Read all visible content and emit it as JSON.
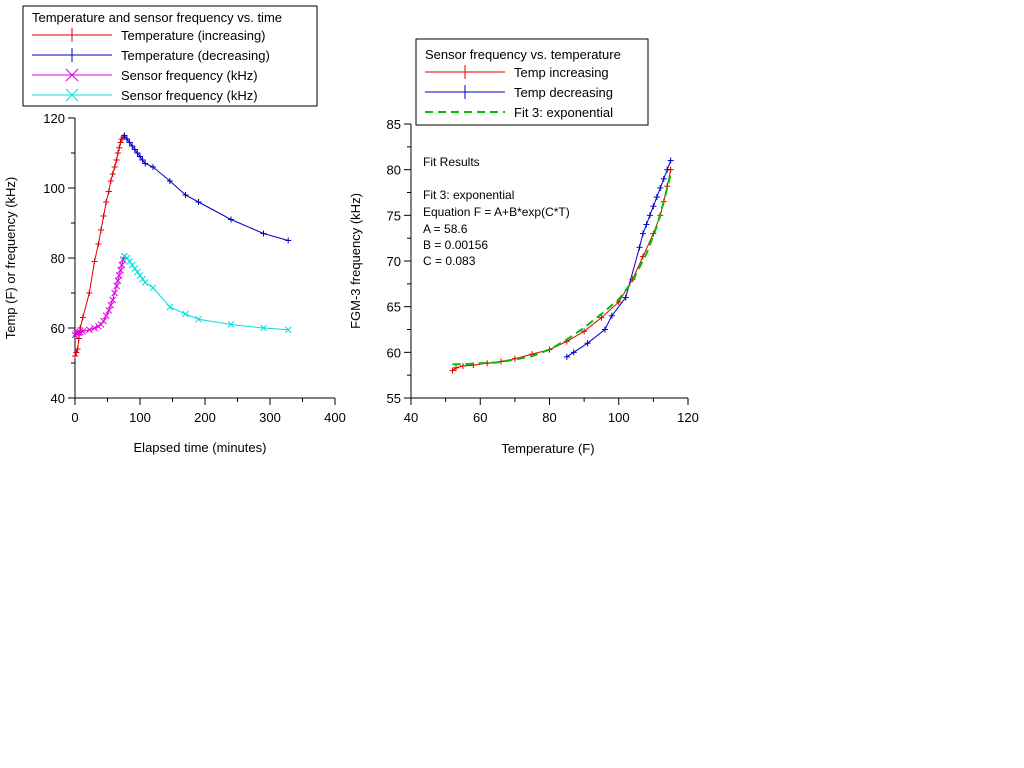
{
  "chart_data": [
    {
      "type": "line",
      "legend_title": "Temperature and sensor frequency vs. time",
      "xlabel": "Elapsed time (minutes)",
      "ylabel": "Temp (F) or frequency (kHz)",
      "xlim": [
        0,
        400
      ],
      "ylim": [
        40,
        120
      ],
      "xticks": [
        0,
        100,
        200,
        300,
        400
      ],
      "yticks": [
        40,
        60,
        80,
        100,
        120
      ],
      "grid": false,
      "legend_position": "top-left",
      "series": [
        {
          "name": "Temperature (increasing)",
          "color": "#e00000",
          "marker": "plus",
          "x": [
            0,
            2,
            4,
            6,
            8,
            12,
            22,
            30,
            36,
            40,
            44,
            48,
            52,
            55,
            58,
            61,
            64,
            66,
            68,
            70,
            72,
            74,
            76
          ],
          "y": [
            52,
            53,
            54,
            57,
            60,
            63,
            70,
            79,
            84,
            88,
            92,
            96,
            99,
            102,
            104,
            106,
            108,
            110,
            111.5,
            113,
            114,
            114.5,
            115
          ]
        },
        {
          "name": "Temperature (decreasing)",
          "color": "#0000c8",
          "marker": "plus",
          "x": [
            76,
            80,
            84,
            88,
            92,
            96,
            100,
            104,
            108,
            120,
            146,
            170,
            190,
            240,
            290,
            328
          ],
          "y": [
            115,
            114,
            113,
            112,
            111,
            110,
            109,
            108,
            107,
            106,
            102,
            98,
            96,
            91,
            87,
            85
          ]
        },
        {
          "name": "Sensor frequency (kHz)",
          "color": "#e000e0",
          "marker": "x",
          "x": [
            0,
            2,
            4,
            6,
            8,
            12,
            22,
            30,
            36,
            40,
            44,
            48,
            52,
            55,
            58,
            61,
            64,
            66,
            68,
            70,
            72,
            74,
            76
          ],
          "y": [
            58,
            58.5,
            58.6,
            58.7,
            58.8,
            59,
            59.5,
            60,
            60.5,
            61,
            62,
            63.5,
            65,
            66.5,
            68,
            70,
            72,
            73.5,
            75,
            76.5,
            78,
            79.5,
            80.5
          ]
        },
        {
          "name": "Sensor frequency (kHz)",
          "color": "#00e0e0",
          "marker": "x",
          "x": [
            76,
            80,
            84,
            88,
            92,
            96,
            100,
            104,
            108,
            120,
            146,
            170,
            190,
            240,
            290,
            328
          ],
          "y": [
            80.5,
            80,
            79,
            78,
            77,
            76,
            75,
            74,
            73,
            71.5,
            66,
            64,
            62.5,
            61,
            60,
            59.5
          ]
        }
      ]
    },
    {
      "type": "line",
      "legend_title": "Sensor frequency vs. temperature",
      "xlabel": "Temperature (F)",
      "ylabel": "FGM-3 frequency (kHz)",
      "xlim": [
        40,
        120
      ],
      "ylim": [
        55,
        85
      ],
      "xticks": [
        40,
        60,
        80,
        100,
        120
      ],
      "yticks": [
        55,
        60,
        65,
        70,
        75,
        80,
        85
      ],
      "grid": false,
      "legend_position": "top-left",
      "series": [
        {
          "name": "Temp increasing",
          "color": "#e00000",
          "marker": "plus",
          "x": [
            52,
            53,
            55,
            58,
            62,
            66,
            70,
            75,
            80,
            85,
            90,
            95,
            100,
            104,
            107,
            110,
            112,
            113,
            114,
            115
          ],
          "y": [
            58,
            58.3,
            58.5,
            58.6,
            58.8,
            59,
            59.3,
            59.8,
            60.3,
            61.2,
            62.3,
            63.8,
            65.5,
            68,
            70.5,
            73,
            75,
            76.5,
            78.2,
            80
          ]
        },
        {
          "name": "Temp decreasing",
          "color": "#0000c8",
          "marker": "plus",
          "x": [
            115,
            114,
            113,
            112,
            111,
            110,
            109,
            108,
            107,
            106,
            102,
            98,
            96,
            91,
            87,
            85
          ],
          "y": [
            81,
            80,
            79,
            78,
            77,
            76,
            75,
            74,
            73,
            71.5,
            66,
            64,
            62.5,
            61,
            60,
            59.5
          ]
        },
        {
          "name": "Fit 3: exponential",
          "color": "#00c000",
          "style": "dashed",
          "x": [
            52,
            55,
            60,
            65,
            70,
            75,
            80,
            85,
            90,
            95,
            100,
            104,
            108,
            111,
            113,
            115
          ],
          "y": [
            58.7,
            58.7,
            58.8,
            58.9,
            59.2,
            59.6,
            60.3,
            61.4,
            62.7,
            64.2,
            65.8,
            67.8,
            70.8,
            73.8,
            76.5,
            79.5
          ]
        }
      ],
      "annotations": [
        "Fit Results",
        "Fit 3: exponential",
        "Equation F = A+B*exp(C*T)",
        "A = 58.6",
        "B = 0.00156",
        "C = 0.083"
      ]
    }
  ]
}
